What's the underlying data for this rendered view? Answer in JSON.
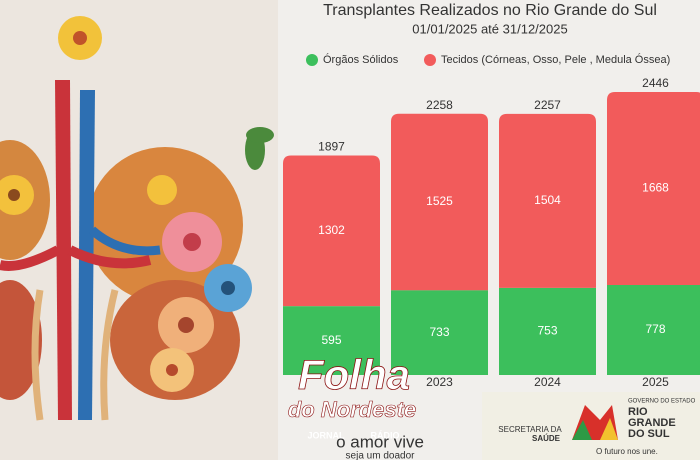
{
  "chart_data": {
    "type": "stacked-bar",
    "title": "Transplantes Realizados no Rio Grande do Sul",
    "subtitle": "01/01/2025 até 31/12/2025",
    "categories": [
      null,
      "2023",
      "2024",
      "2025"
    ],
    "series": [
      {
        "name": "Órgãos Sólidos",
        "color": "#3cbf5c",
        "values": [
          595,
          733,
          753,
          778
        ]
      },
      {
        "name": "Tecidos (Córneas, Osso, Pele , Medula Óssea)",
        "color": "#f25b5b",
        "values": [
          1302,
          1525,
          1504,
          1668
        ]
      }
    ],
    "totals": [
      1897,
      2258,
      2257,
      2446
    ]
  },
  "footer": {
    "brand": "Folha",
    "brand_sub": "do Nordeste",
    "media": [
      "JORNAL",
      "RÁDIO"
    ],
    "slogan": "o amor vive",
    "slogan_sub": "seja um doador",
    "secretaria": [
      "SECRETARIA DA",
      "SAÚDE"
    ],
    "governo": [
      "GOVERNO DO ESTADO",
      "RIO",
      "GRANDE",
      "DO SUL"
    ],
    "motto": "O futuro nos une."
  }
}
